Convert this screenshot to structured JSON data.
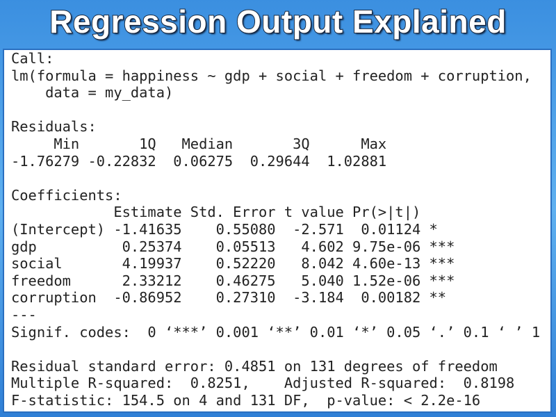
{
  "header": {
    "title": "Regression Output Explained"
  },
  "output": {
    "blocks": [
      {
        "lines": [
          "Call:",
          "lm(formula = happiness ~ gdp + social + freedom + corruption,",
          "    data = my_data)"
        ]
      },
      {
        "lines": [
          "Residuals:",
          "     Min       1Q   Median       3Q      Max",
          "-1.76279 -0.22832  0.06275  0.29644  1.02881"
        ]
      },
      {
        "lines": [
          "Coefficients:",
          "            Estimate Std. Error t value Pr(>|t|)",
          "(Intercept) -1.41635    0.55080  -2.571  0.01124 *",
          "gdp          0.25374    0.05513   4.602 9.75e-06 ***",
          "social       4.19937    0.52220   8.042 4.60e-13 ***",
          "freedom      2.33212    0.46275   5.040 1.52e-06 ***",
          "corruption  -0.86952    0.27310  -3.184  0.00182 **",
          "---",
          "Signif. codes:  0 ‘***’ 0.001 ‘**’ 0.01 ‘*’ 0.05 ‘.’ 0.1 ‘ ’ 1"
        ]
      },
      {
        "lines": [
          "Residual standard error: 0.4851 on 131 degrees of freedom",
          "Multiple R-squared:  0.8251,\tAdjusted R-squared:  0.8198",
          "F-statistic: 154.5 on 4 and 131 DF,  p-value: < 2.2e-16"
        ]
      }
    ]
  }
}
